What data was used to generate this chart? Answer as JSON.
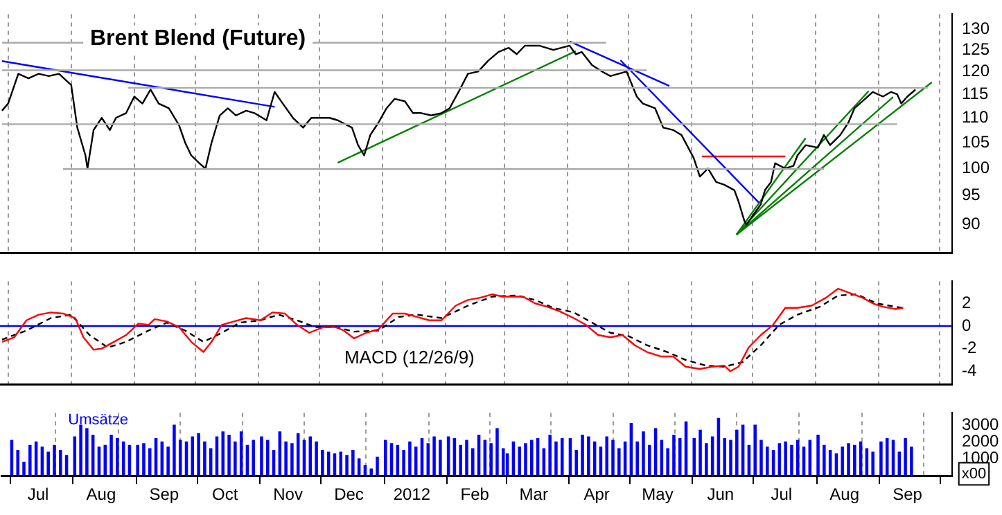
{
  "chart_data": [
    {
      "type": "line",
      "title": "Brent Blend (Future)",
      "log": "y",
      "marker": "none",
      "grid": "x",
      "tick_labels": "y",
      "xlim": [
        "2011-06-27",
        "2012-10-07"
      ],
      "ylim": [
        85.3,
        133.7
      ],
      "yticks": [
        90,
        95,
        100,
        105,
        110,
        115,
        120,
        125,
        130
      ],
      "xticks": [
        {
          "value": "2011-07-01",
          "label": null
        },
        {
          "value": "2011-08-01",
          "label": null
        },
        {
          "value": "2011-09-01",
          "label": null
        },
        {
          "value": "2011-10-01",
          "label": null
        },
        {
          "value": "2011-11-01",
          "label": null
        },
        {
          "value": "2011-12-01",
          "label": null
        },
        {
          "value": "2012-01-01",
          "label": null
        },
        {
          "value": "2012-02-01",
          "label": null
        },
        {
          "value": "2012-03-01",
          "label": null
        },
        {
          "value": "2012-04-01",
          "label": null
        },
        {
          "value": "2012-05-01",
          "label": null
        },
        {
          "value": "2012-06-01",
          "label": null
        },
        {
          "value": "2012-07-01",
          "label": null
        },
        {
          "value": "2012-08-01",
          "label": null
        },
        {
          "value": "2012-09-01",
          "label": null
        },
        {
          "value": "2012-10-01",
          "label": null
        }
      ],
      "series": [
        {
          "color": "#aaaaaa",
          "x": [
            "2011-06-28",
            "2012-04-20"
          ],
          "values": [
            126.7,
            126.7
          ]
        },
        {
          "color": "#aaaaaa",
          "x": [
            "2011-06-28",
            "2012-05-10"
          ],
          "values": [
            120.3,
            120.3
          ]
        },
        {
          "color": "#aaaaaa",
          "x": [
            "2011-08-29",
            "2012-09-25"
          ],
          "values": [
            116.4,
            116.4
          ]
        },
        {
          "color": "#aaaaaa",
          "x": [
            "2011-06-28",
            "2012-09-10"
          ],
          "values": [
            108.7,
            108.7
          ]
        },
        {
          "color": "#aaaaaa",
          "x": [
            "2011-07-28",
            "2012-08-05"
          ],
          "values": [
            99.9,
            99.9
          ]
        },
        {
          "color": "#000000",
          "x": [
            "2011-06-28",
            "2011-07-01",
            "2011-07-06",
            "2011-07-11",
            "2011-07-16",
            "2011-07-21",
            "2011-07-26",
            "2011-08-01",
            "2011-08-04",
            "2011-08-08",
            "2011-08-09",
            "2011-08-12",
            "2011-08-16",
            "2011-08-20",
            "2011-08-23",
            "2011-08-28",
            "2011-09-01",
            "2011-09-05",
            "2011-09-09",
            "2011-09-13",
            "2011-09-18",
            "2011-09-23",
            "2011-09-26",
            "2011-09-29",
            "2011-10-03",
            "2011-10-06",
            "2011-10-09",
            "2011-10-13",
            "2011-10-17",
            "2011-10-21",
            "2011-10-26",
            "2011-10-30",
            "2011-11-05",
            "2011-11-09",
            "2011-11-13",
            "2011-11-18",
            "2011-11-23",
            "2011-11-27",
            "2011-12-01",
            "2011-12-06",
            "2011-12-10",
            "2011-12-17",
            "2011-12-20",
            "2011-12-23",
            "2011-12-26",
            "2011-12-30",
            "2012-01-03",
            "2012-01-07",
            "2012-01-12",
            "2012-01-16",
            "2012-01-20",
            "2012-01-25",
            "2012-01-30",
            "2012-02-03",
            "2012-02-08",
            "2012-02-12",
            "2012-02-17",
            "2012-02-22",
            "2012-02-27",
            "2012-03-03",
            "2012-03-07",
            "2012-03-11",
            "2012-03-18",
            "2012-03-25",
            "2012-04-02",
            "2012-04-05",
            "2012-04-08",
            "2012-04-13",
            "2012-04-18",
            "2012-04-22",
            "2012-04-26",
            "2012-04-30",
            "2012-05-05",
            "2012-05-08",
            "2012-05-14",
            "2012-05-18",
            "2012-05-23",
            "2012-05-27",
            "2012-06-02",
            "2012-06-05",
            "2012-06-09",
            "2012-06-13",
            "2012-06-17",
            "2012-06-22",
            "2012-06-24",
            "2012-06-27",
            "2012-06-28",
            "2012-07-02",
            "2012-07-05",
            "2012-07-07",
            "2012-07-10",
            "2012-07-12",
            "2012-07-17",
            "2012-07-21",
            "2012-07-23",
            "2012-07-27",
            "2012-08-02",
            "2012-08-05",
            "2012-08-08",
            "2012-08-13",
            "2012-08-17",
            "2012-08-20",
            "2012-08-24",
            "2012-08-29",
            "2012-09-03",
            "2012-09-07",
            "2012-09-10",
            "2012-09-12",
            "2012-09-15",
            "2012-09-19"
          ],
          "values": [
            111.5,
            113,
            119.5,
            118.5,
            119.5,
            119,
            119.5,
            117,
            108,
            102.5,
            100,
            107.5,
            110,
            107.5,
            110,
            111,
            114.5,
            113,
            116,
            113,
            112,
            108.5,
            105,
            102.5,
            101,
            100,
            105,
            110.5,
            112,
            110.5,
            111.5,
            111,
            109.5,
            115.5,
            113,
            110,
            108,
            110,
            110,
            110,
            109.5,
            108,
            104.5,
            102.5,
            106.5,
            109,
            112,
            114,
            113.5,
            111,
            111,
            110.5,
            111,
            112,
            116,
            119.5,
            120,
            122.5,
            124.5,
            125.5,
            124,
            126,
            126,
            125,
            126,
            124,
            124.5,
            121.5,
            120,
            119,
            119.5,
            120,
            114.5,
            113,
            112,
            108,
            107.5,
            106.5,
            102,
            98.5,
            100,
            97.5,
            97,
            96,
            94,
            90.5,
            90,
            92,
            93.5,
            96,
            97.5,
            101,
            100,
            100.5,
            102.5,
            104.5,
            104,
            106.5,
            104.5,
            106.5,
            109,
            112,
            113.5,
            115.5,
            114.5,
            115.5,
            115,
            113,
            114.5,
            116
          ]
        },
        {
          "color": "#0000ff",
          "x": [
            "2011-06-28",
            "2011-11-09"
          ],
          "values": [
            122.4,
            112.3
          ]
        },
        {
          "color": "#0000ff",
          "x": [
            "2012-04-02",
            "2012-05-21"
          ],
          "values": [
            127.0,
            116.8
          ]
        },
        {
          "color": "#0000ff",
          "x": [
            "2012-04-27",
            "2012-07-04"
          ],
          "values": [
            122.6,
            93.8
          ]
        },
        {
          "color": "#008000",
          "x": [
            "2011-12-10",
            "2012-04-05"
          ],
          "values": [
            101.1,
            124.7
          ]
        },
        {
          "color": "#008000",
          "x": [
            "2012-06-23",
            "2012-07-27"
          ],
          "values": [
            88.3,
            105.9
          ]
        },
        {
          "color": "#008000",
          "x": [
            "2012-06-23",
            "2012-08-27"
          ],
          "values": [
            88.3,
            115.7
          ]
        },
        {
          "color": "#008000",
          "x": [
            "2012-06-23",
            "2012-09-08"
          ],
          "values": [
            88.3,
            114.4
          ]
        },
        {
          "color": "#008000",
          "x": [
            "2012-06-23",
            "2012-09-27"
          ],
          "values": [
            88.3,
            117.6
          ]
        },
        {
          "color": "#ff0000",
          "x": [
            "2012-06-06",
            "2012-07-17"
          ],
          "values": [
            102.3,
            102.3
          ]
        }
      ]
    },
    {
      "type": "line",
      "marker": "none",
      "grid": "x",
      "tick_labels": "y",
      "annotations": [
        "MACD (12/26/9)"
      ],
      "xlim": [
        "2011-06-27",
        "2012-10-07"
      ],
      "ylim": [
        -5.18,
        3.95
      ],
      "yticks": [
        -4,
        -2,
        0,
        2
      ],
      "ref_lines": [
        {
          "axis": "y",
          "value": 0,
          "color": "#0000ff"
        }
      ],
      "xticks": [
        {
          "value": "2011-07-01",
          "label": null
        },
        {
          "value": "2011-08-01",
          "label": null
        },
        {
          "value": "2011-09-01",
          "label": null
        },
        {
          "value": "2011-10-01",
          "label": null
        },
        {
          "value": "2011-11-01",
          "label": null
        },
        {
          "value": "2011-12-01",
          "label": null
        },
        {
          "value": "2012-01-01",
          "label": null
        },
        {
          "value": "2012-02-01",
          "label": null
        },
        {
          "value": "2012-03-01",
          "label": null
        },
        {
          "value": "2012-04-01",
          "label": null
        },
        {
          "value": "2012-05-01",
          "label": null
        },
        {
          "value": "2012-06-01",
          "label": null
        },
        {
          "value": "2012-07-01",
          "label": null
        },
        {
          "value": "2012-08-01",
          "label": null
        },
        {
          "value": "2012-09-01",
          "label": null
        },
        {
          "value": "2012-10-01",
          "label": null
        }
      ],
      "series": [
        {
          "color": "#ff0000",
          "line_style": "solid",
          "x": [
            "2011-06-28",
            "2011-07-04",
            "2011-07-10",
            "2011-07-16",
            "2011-07-22",
            "2011-07-28",
            "2011-08-03",
            "2011-08-07",
            "2011-08-12",
            "2011-08-16",
            "2011-08-22",
            "2011-08-28",
            "2011-09-03",
            "2011-09-08",
            "2011-09-11",
            "2011-09-17",
            "2011-09-23",
            "2011-09-29",
            "2011-10-05",
            "2011-10-09",
            "2011-10-14",
            "2011-10-20",
            "2011-10-26",
            "2011-11-02",
            "2011-11-08",
            "2011-11-14",
            "2011-11-20",
            "2011-11-26",
            "2011-12-03",
            "2011-12-09",
            "2011-12-13",
            "2011-12-18",
            "2011-12-24",
            "2011-12-30",
            "2012-01-06",
            "2012-01-12",
            "2012-01-18",
            "2012-01-24",
            "2012-01-30",
            "2012-02-06",
            "2012-02-12",
            "2012-02-18",
            "2012-02-24",
            "2012-02-29",
            "2012-03-10",
            "2012-03-16",
            "2012-03-22",
            "2012-03-28",
            "2012-04-04",
            "2012-04-10",
            "2012-04-16",
            "2012-04-22",
            "2012-04-28",
            "2012-05-04",
            "2012-05-10",
            "2012-05-17",
            "2012-05-23",
            "2012-05-29",
            "2012-06-05",
            "2012-06-11",
            "2012-06-17",
            "2012-06-20",
            "2012-06-24",
            "2012-06-29",
            "2012-07-05",
            "2012-07-11",
            "2012-07-17",
            "2012-07-23",
            "2012-07-30",
            "2012-08-06",
            "2012-08-12",
            "2012-08-18",
            "2012-08-24",
            "2012-08-29",
            "2012-09-03",
            "2012-09-09",
            "2012-09-13"
          ],
          "values": [
            -1.4,
            -1.0,
            0.5,
            1.0,
            1.2,
            1.1,
            0.7,
            -1.0,
            -2.1,
            -2.0,
            -1.4,
            -0.8,
            0.2,
            0.1,
            0.6,
            0.4,
            -0.1,
            -1.4,
            -2.3,
            -1.4,
            0.1,
            0.4,
            0.7,
            0.5,
            1.2,
            1.1,
            0.1,
            -0.6,
            -0.1,
            -0.1,
            -0.4,
            -1.1,
            -0.6,
            -0.3,
            1.1,
            1.1,
            0.8,
            0.5,
            0.5,
            1.8,
            2.3,
            2.5,
            2.8,
            2.6,
            2.6,
            2.0,
            1.7,
            1.3,
            0.7,
            0.1,
            -0.8,
            -1.0,
            -0.8,
            -1.7,
            -2.3,
            -2.7,
            -2.7,
            -3.6,
            -3.8,
            -3.6,
            -3.5,
            -4.0,
            -3.6,
            -1.9,
            -0.8,
            0.1,
            1.6,
            1.6,
            1.8,
            2.5,
            3.3,
            2.9,
            2.5,
            2.0,
            1.7,
            1.5,
            1.6
          ]
        },
        {
          "color": "#000000",
          "line_style": "dashed",
          "x": [
            "2011-06-28",
            "2011-07-10",
            "2011-07-22",
            "2011-08-01",
            "2011-08-10",
            "2011-08-19",
            "2011-08-28",
            "2011-09-08",
            "2011-09-17",
            "2011-09-26",
            "2011-10-05",
            "2011-10-14",
            "2011-10-23",
            "2011-11-02",
            "2011-11-11",
            "2011-11-20",
            "2011-11-29",
            "2011-12-09",
            "2011-12-18",
            "2011-12-30",
            "2012-01-09",
            "2012-01-18",
            "2012-01-30",
            "2012-02-12",
            "2012-02-24",
            "2012-03-07",
            "2012-03-16",
            "2012-03-25",
            "2012-04-04",
            "2012-04-13",
            "2012-04-22",
            "2012-05-01",
            "2012-05-10",
            "2012-05-20",
            "2012-05-29",
            "2012-06-08",
            "2012-06-17",
            "2012-06-26",
            "2012-07-05",
            "2012-07-14",
            "2012-07-23",
            "2012-08-03",
            "2012-08-12",
            "2012-08-21",
            "2012-08-31",
            "2012-09-09",
            "2012-09-13"
          ],
          "values": [
            -1.2,
            -0.4,
            0.7,
            1.0,
            -0.8,
            -1.9,
            -1.4,
            -0.4,
            0.3,
            -0.4,
            -1.4,
            -0.6,
            0.3,
            0.5,
            1.0,
            0.5,
            -0.1,
            -0.1,
            -0.5,
            -0.4,
            0.8,
            1.0,
            0.7,
            1.8,
            2.6,
            2.7,
            2.3,
            1.6,
            1.2,
            0.3,
            -0.6,
            -0.9,
            -1.7,
            -2.3,
            -3.0,
            -3.5,
            -3.6,
            -3.2,
            -1.7,
            0.1,
            1.0,
            1.7,
            2.7,
            2.8,
            2.0,
            1.7,
            1.6
          ]
        }
      ]
    },
    {
      "type": "bar",
      "grid": "x",
      "annotations": [
        "Umsätze",
        "x00"
      ],
      "xlim": [
        "2011-06-27",
        "2012-10-07"
      ],
      "ylim": [
        0,
        3730
      ],
      "yticks": [
        1000,
        2000,
        3000
      ],
      "xticks": [
        {
          "value": "2011-07-01",
          "label": null
        },
        {
          "value": "2011-07-15",
          "label": "Jul"
        },
        {
          "value": "2011-08-01",
          "label": null
        },
        {
          "value": "2011-08-15",
          "label": "Aug"
        },
        {
          "value": "2011-09-01",
          "label": null
        },
        {
          "value": "2011-09-15",
          "label": "Sep"
        },
        {
          "value": "2011-10-01",
          "label": null
        },
        {
          "value": "2011-10-15",
          "label": "Oct"
        },
        {
          "value": "2011-11-01",
          "label": null
        },
        {
          "value": "2011-11-15",
          "label": "Nov"
        },
        {
          "value": "2011-12-01",
          "label": null
        },
        {
          "value": "2011-12-15",
          "label": "Dec"
        },
        {
          "value": "2012-01-01",
          "label": null
        },
        {
          "value": "2012-01-15",
          "label": "2012"
        },
        {
          "value": "2012-02-01",
          "label": null
        },
        {
          "value": "2012-02-15",
          "label": "Feb"
        },
        {
          "value": "2012-03-01",
          "label": null
        },
        {
          "value": "2012-03-15",
          "label": "Mar"
        },
        {
          "value": "2012-04-01",
          "label": null
        },
        {
          "value": "2012-04-15",
          "label": "Apr"
        },
        {
          "value": "2012-05-01",
          "label": null
        },
        {
          "value": "2012-05-15",
          "label": "May"
        },
        {
          "value": "2012-06-01",
          "label": null
        },
        {
          "value": "2012-06-15",
          "label": "Jun"
        },
        {
          "value": "2012-07-01",
          "label": null
        },
        {
          "value": "2012-07-15",
          "label": "Jul"
        },
        {
          "value": "2012-08-01",
          "label": null
        },
        {
          "value": "2012-08-15",
          "label": "Aug"
        },
        {
          "value": "2012-09-01",
          "label": null
        },
        {
          "value": "2012-09-15",
          "label": "Sep"
        },
        {
          "value": "2012-10-01",
          "label": null
        }
      ],
      "series": [
        {
          "color": "#0000ff",
          "x": [
            "2011-07-02",
            "2011-07-05",
            "2011-07-08",
            "2011-07-11",
            "2011-07-14",
            "2011-07-17",
            "2011-07-20",
            "2011-07-23",
            "2011-07-26",
            "2011-07-29",
            "2011-08-02",
            "2011-08-05",
            "2011-08-08",
            "2011-08-11",
            "2011-08-14",
            "2011-08-17",
            "2011-08-20",
            "2011-08-23",
            "2011-08-26",
            "2011-08-29",
            "2011-09-02",
            "2011-09-05",
            "2011-09-08",
            "2011-09-11",
            "2011-09-14",
            "2011-09-17",
            "2011-09-20",
            "2011-09-23",
            "2011-09-26",
            "2011-09-29",
            "2011-10-02",
            "2011-10-05",
            "2011-10-08",
            "2011-10-11",
            "2011-10-14",
            "2011-10-17",
            "2011-10-20",
            "2011-10-23",
            "2011-10-26",
            "2011-10-29",
            "2011-11-02",
            "2011-11-05",
            "2011-11-08",
            "2011-11-11",
            "2011-11-14",
            "2011-11-17",
            "2011-11-20",
            "2011-11-23",
            "2011-11-26",
            "2011-11-29",
            "2011-12-02",
            "2011-12-05",
            "2011-12-08",
            "2011-12-11",
            "2011-12-14",
            "2011-12-17",
            "2011-12-20",
            "2011-12-23",
            "2011-12-26",
            "2011-12-29",
            "2012-01-02",
            "2012-01-05",
            "2012-01-08",
            "2012-01-11",
            "2012-01-14",
            "2012-01-17",
            "2012-01-20",
            "2012-01-23",
            "2012-01-26",
            "2012-01-29",
            "2012-02-02",
            "2012-02-05",
            "2012-02-08",
            "2012-02-11",
            "2012-02-14",
            "2012-02-17",
            "2012-02-20",
            "2012-02-23",
            "2012-02-26",
            "2012-02-29",
            "2012-03-02",
            "2012-03-05",
            "2012-03-08",
            "2012-03-11",
            "2012-03-14",
            "2012-03-17",
            "2012-03-20",
            "2012-03-23",
            "2012-03-26",
            "2012-03-29",
            "2012-04-02",
            "2012-04-05",
            "2012-04-08",
            "2012-04-11",
            "2012-04-14",
            "2012-04-17",
            "2012-04-20",
            "2012-04-23",
            "2012-04-26",
            "2012-04-29",
            "2012-05-02",
            "2012-05-05",
            "2012-05-08",
            "2012-05-11",
            "2012-05-14",
            "2012-05-17",
            "2012-05-20",
            "2012-05-23",
            "2012-05-26",
            "2012-05-29",
            "2012-06-02",
            "2012-06-05",
            "2012-06-08",
            "2012-06-11",
            "2012-06-14",
            "2012-06-17",
            "2012-06-20",
            "2012-06-23",
            "2012-06-26",
            "2012-06-29",
            "2012-07-02",
            "2012-07-05",
            "2012-07-08",
            "2012-07-11",
            "2012-07-14",
            "2012-07-17",
            "2012-07-20",
            "2012-07-23",
            "2012-07-26",
            "2012-07-29",
            "2012-08-02",
            "2012-08-05",
            "2012-08-08",
            "2012-08-11",
            "2012-08-14",
            "2012-08-17",
            "2012-08-20",
            "2012-08-23",
            "2012-08-26",
            "2012-08-29",
            "2012-09-02",
            "2012-09-05",
            "2012-09-08",
            "2012-09-11",
            "2012-09-14",
            "2012-09-17"
          ],
          "values": [
            2100,
            1500,
            800,
            1800,
            2000,
            1700,
            1400,
            1800,
            1500,
            1200,
            2300,
            3000,
            2800,
            2400,
            1700,
            1800,
            2400,
            2200,
            2000,
            1800,
            1800,
            1900,
            1600,
            2200,
            2000,
            1700,
            3000,
            2100,
            2000,
            2300,
            2500,
            2000,
            1600,
            2300,
            2600,
            2400,
            2000,
            2600,
            1800,
            2100,
            2300,
            2100,
            1500,
            2600,
            2000,
            1900,
            2500,
            2100,
            2300,
            2000,
            1500,
            1400,
            1300,
            1400,
            1200,
            1500,
            1000,
            600,
            400,
            1100,
            2100,
            1900,
            1800,
            1500,
            2000,
            1700,
            2200,
            1900,
            2300,
            2100,
            2300,
            2200,
            1800,
            2100,
            1600,
            2400,
            2100,
            1900,
            2800,
            1600,
            1300,
            2000,
            1700,
            1900,
            2100,
            2200,
            1600,
            2400,
            2000,
            2200,
            2200,
            1500,
            2400,
            2300,
            2000,
            1700,
            2300,
            2100,
            1600,
            2000,
            3100,
            2000,
            2600,
            1800,
            2800,
            2100,
            1600,
            2400,
            2200,
            3200,
            2200,
            2700,
            1900,
            2300,
            3400,
            2200,
            2100,
            2700,
            3000,
            1800,
            3000,
            2100,
            1700,
            1500,
            1900,
            2000,
            1800,
            2100,
            1700,
            2100,
            2400,
            1800,
            1500,
            1300,
            1700,
            1900,
            1800,
            2000,
            1600,
            1400,
            2000,
            2200,
            2100,
            1400,
            2200,
            1700
          ]
        }
      ]
    }
  ]
}
